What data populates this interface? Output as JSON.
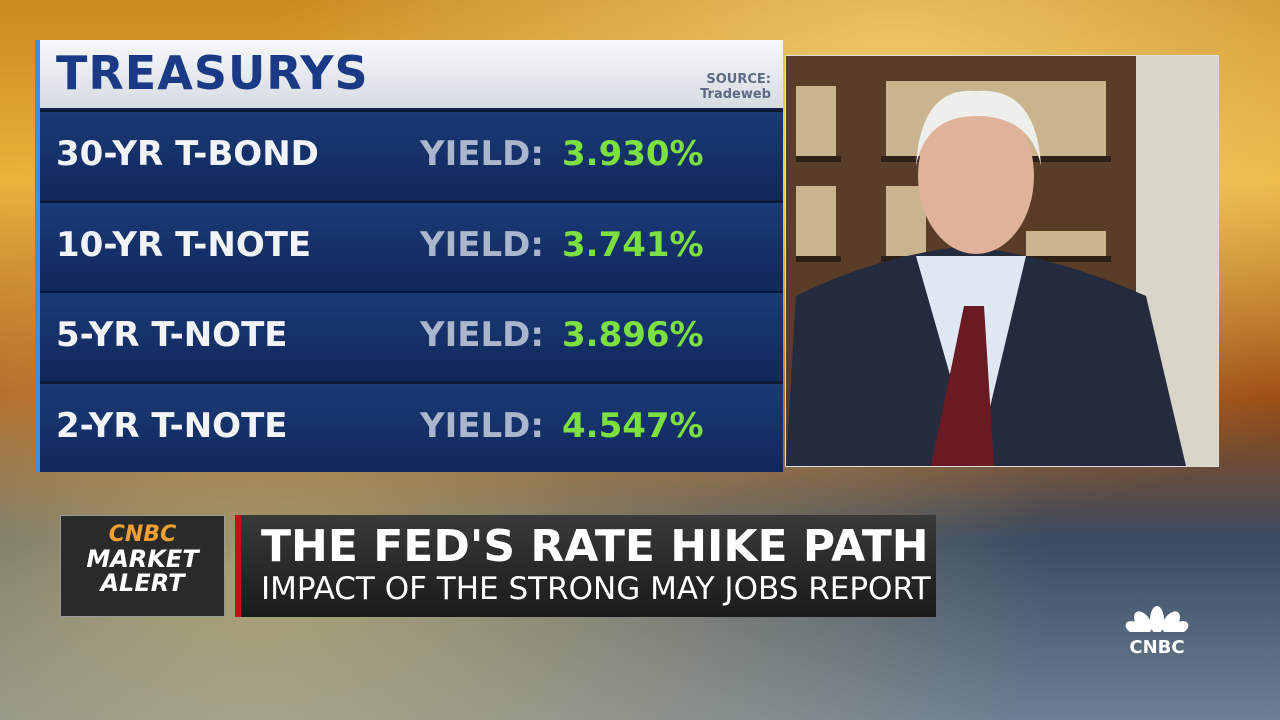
{
  "header": {
    "title": "TREASURYS",
    "source_label": "SOURCE:",
    "source": "Tradeweb"
  },
  "table": {
    "rows": [
      {
        "label": "30-YR T-BOND",
        "yield_label": "YIELD:",
        "value": "3.930%"
      },
      {
        "label": "10-YR T-NOTE",
        "yield_label": "YIELD:",
        "value": "3.741%"
      },
      {
        "label": "5-YR T-NOTE",
        "yield_label": "YIELD:",
        "value": "3.896%"
      },
      {
        "label": "2-YR T-NOTE",
        "yield_label": "YIELD:",
        "value": "4.547%"
      }
    ]
  },
  "banner": {
    "logo": "CNBC",
    "tag_line1": "MARKET",
    "tag_line2": "ALERT",
    "headline": "THE FED'S RATE HIKE PATH",
    "subheadline": "IMPACT OF THE STRONG MAY JOBS REPORT"
  },
  "corner_logo": "CNBC"
}
